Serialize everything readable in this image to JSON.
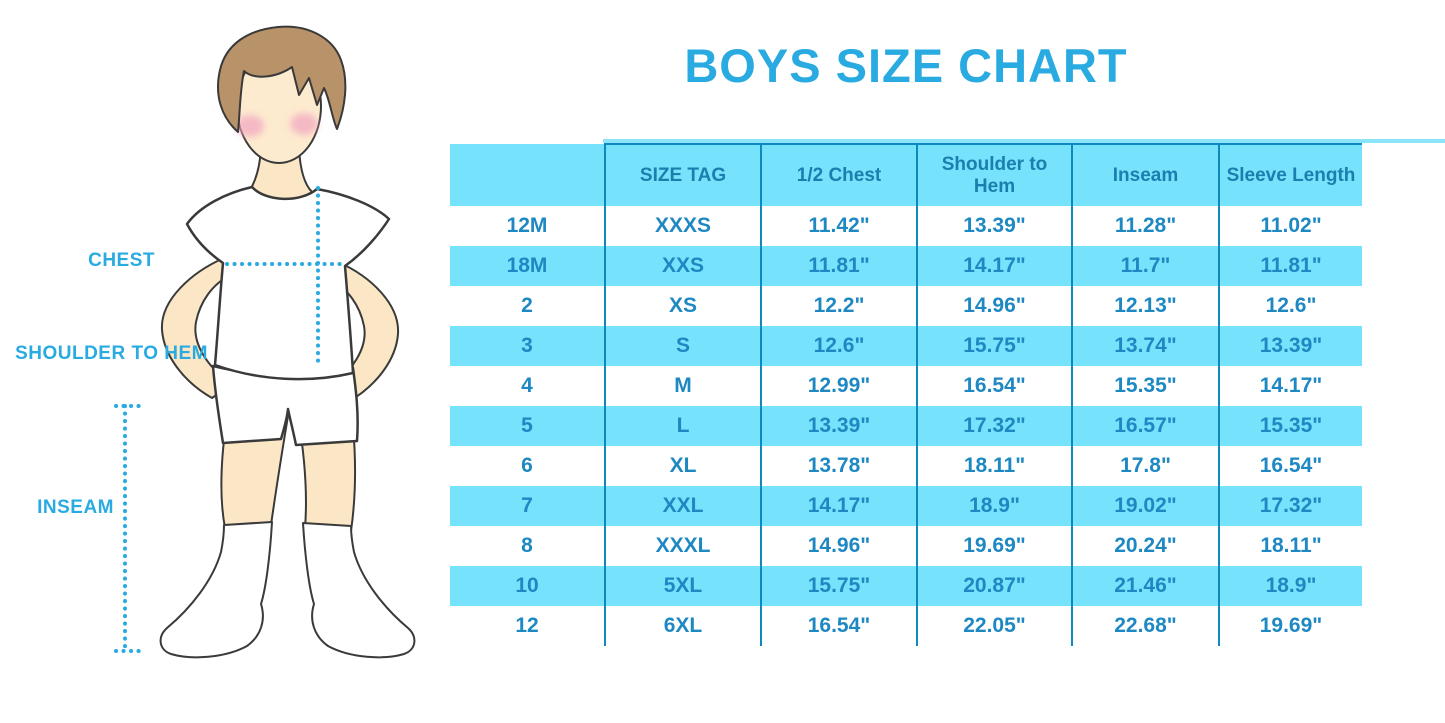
{
  "title": "BOYS SIZE CHART",
  "colors": {
    "accent": "#29ABE2",
    "stripe": "#76E2FB",
    "divider": "#0E89C0",
    "cell_text": "#1E88C2",
    "header_text": "#1A7FAE"
  },
  "figure": {
    "labels": {
      "chest": "CHEST",
      "shoulder_to_hem": "SHOULDER TO HEM",
      "inseam": "INSEAM"
    }
  },
  "table": {
    "columns": [
      "",
      "SIZE TAG",
      "1/2 Chest",
      "Shoulder to Hem",
      "Inseam",
      "Sleeve Length"
    ],
    "rows": [
      [
        "12M",
        "XXXS",
        "11.42\"",
        "13.39\"",
        "11.28\"",
        "11.02\""
      ],
      [
        "18M",
        "XXS",
        "11.81\"",
        "14.17\"",
        "11.7\"",
        "11.81\""
      ],
      [
        "2",
        "XS",
        "12.2\"",
        "14.96\"",
        "12.13\"",
        "12.6\""
      ],
      [
        "3",
        "S",
        "12.6\"",
        "15.75\"",
        "13.74\"",
        "13.39\""
      ],
      [
        "4",
        "M",
        "12.99\"",
        "16.54\"",
        "15.35\"",
        "14.17\""
      ],
      [
        "5",
        "L",
        "13.39\"",
        "17.32\"",
        "16.57\"",
        "15.35\""
      ],
      [
        "6",
        "XL",
        "13.78\"",
        "18.11\"",
        "17.8\"",
        "16.54\""
      ],
      [
        "7",
        "XXL",
        "14.17\"",
        "18.9\"",
        "19.02\"",
        "17.32\""
      ],
      [
        "8",
        "XXXL",
        "14.96\"",
        "19.69\"",
        "20.24\"",
        "18.11\""
      ],
      [
        "10",
        "5XL",
        "15.75\"",
        "20.87\"",
        "21.46\"",
        "18.9\""
      ],
      [
        "12",
        "6XL",
        "16.54\"",
        "22.05\"",
        "22.68\"",
        "19.69\""
      ]
    ]
  }
}
